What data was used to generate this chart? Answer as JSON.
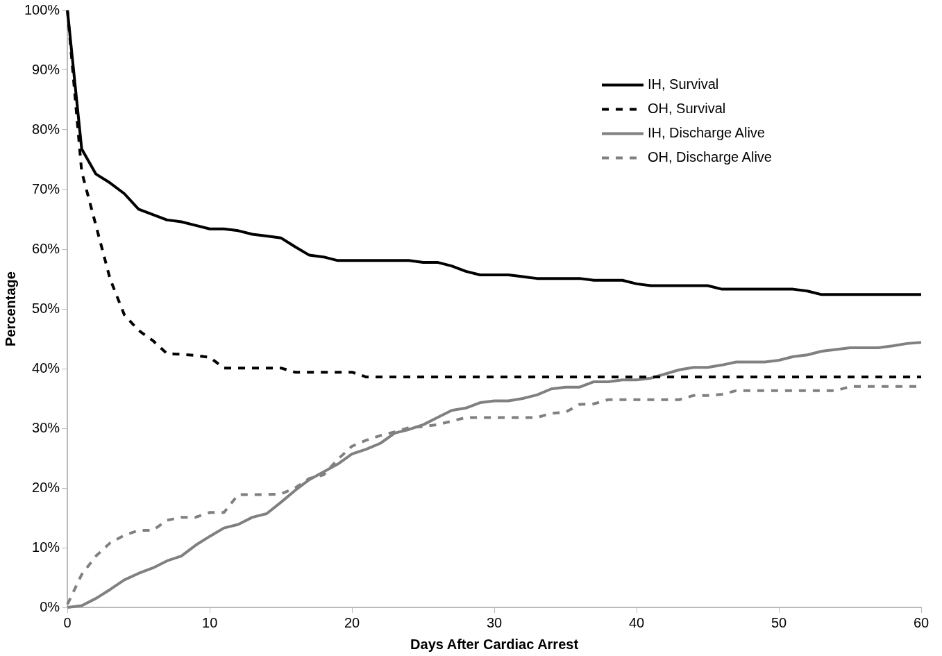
{
  "chart_data": {
    "type": "line",
    "xlabel": "Days After Cardiac Arrest",
    "ylabel": "Percentage",
    "x": [
      0,
      1,
      2,
      3,
      4,
      5,
      6,
      7,
      8,
      9,
      10,
      11,
      12,
      13,
      14,
      15,
      16,
      17,
      18,
      19,
      20,
      21,
      22,
      23,
      24,
      25,
      26,
      27,
      28,
      29,
      30,
      31,
      32,
      33,
      34,
      35,
      36,
      37,
      38,
      39,
      40,
      41,
      42,
      43,
      44,
      45,
      46,
      47,
      48,
      49,
      50,
      51,
      52,
      53,
      54,
      55,
      56,
      57,
      58,
      59,
      60
    ],
    "series": [
      {
        "name": "IH, Survival",
        "color": "#000000",
        "line_style": "solid",
        "values": [
          100,
          76.8,
          72.6,
          71.1,
          69.3,
          66.7,
          65.8,
          64.9,
          64.6,
          64.0,
          63.4,
          63.4,
          63.1,
          62.5,
          62.2,
          61.9,
          60.4,
          59.0,
          58.7,
          58.1,
          58.1,
          58.1,
          58.1,
          58.1,
          58.1,
          57.8,
          57.8,
          57.2,
          56.3,
          55.7,
          55.7,
          55.7,
          55.4,
          55.1,
          55.1,
          55.1,
          55.1,
          54.8,
          54.8,
          54.8,
          54.2,
          53.9,
          53.9,
          53.9,
          53.9,
          53.9,
          53.3,
          53.3,
          53.3,
          53.3,
          53.3,
          53.3,
          53.0,
          52.4,
          52.4,
          52.4,
          52.4,
          52.4,
          52.4,
          52.4,
          52.4
        ]
      },
      {
        "name": "OH, Survival",
        "color": "#000000",
        "line_style": "dashed",
        "values": [
          100,
          73,
          64,
          55,
          49,
          46.4,
          44.7,
          42.5,
          42.4,
          42.2,
          41.9,
          40.1,
          40.1,
          40.1,
          40.1,
          40.1,
          39.4,
          39.4,
          39.4,
          39.4,
          39.4,
          38.6,
          38.6,
          38.6,
          38.6,
          38.6,
          38.6,
          38.6,
          38.6,
          38.6,
          38.6,
          38.6,
          38.6,
          38.6,
          38.6,
          38.6,
          38.6,
          38.6,
          38.6,
          38.6,
          38.6,
          38.6,
          38.6,
          38.6,
          38.6,
          38.6,
          38.6,
          38.6,
          38.6,
          38.6,
          38.6,
          38.6,
          38.6,
          38.6,
          38.6,
          38.6,
          38.6,
          38.6,
          38.6,
          38.6,
          38.6
        ]
      },
      {
        "name": "IH, Discharge Alive",
        "color": "#808080",
        "line_style": "solid",
        "values": [
          0,
          0.3,
          1.5,
          3.0,
          4.6,
          5.7,
          6.6,
          7.8,
          8.6,
          10.4,
          11.9,
          13.3,
          13.9,
          15.1,
          15.7,
          17.6,
          19.6,
          21.4,
          22.7,
          24.0,
          25.7,
          26.5,
          27.5,
          29.2,
          29.8,
          30.6,
          31.8,
          33.0,
          33.4,
          34.3,
          34.6,
          34.6,
          35.0,
          35.6,
          36.6,
          36.9,
          36.9,
          37.8,
          37.8,
          38.1,
          38.1,
          38.4,
          39.1,
          39.8,
          40.2,
          40.2,
          40.6,
          41.1,
          41.1,
          41.1,
          41.4,
          42.0,
          42.3,
          42.9,
          43.2,
          43.5,
          43.5,
          43.5,
          43.8,
          44.2,
          44.4
        ]
      },
      {
        "name": "OH, Discharge Alive",
        "color": "#808080",
        "line_style": "dashed",
        "values": [
          0.5,
          5.5,
          8.6,
          10.8,
          12.1,
          12.9,
          12.9,
          14.6,
          15.1,
          15.1,
          15.9,
          15.9,
          18.9,
          18.9,
          18.9,
          19.0,
          20.0,
          21.6,
          22.2,
          24.8,
          27.0,
          28.0,
          28.8,
          29.4,
          30.1,
          30.3,
          30.6,
          31.2,
          31.8,
          31.8,
          31.8,
          31.8,
          31.8,
          31.8,
          32.5,
          32.7,
          34.0,
          34.1,
          34.8,
          34.8,
          34.8,
          34.8,
          34.8,
          34.8,
          35.5,
          35.5,
          35.7,
          36.3,
          36.3,
          36.3,
          36.3,
          36.3,
          36.3,
          36.3,
          36.3,
          37.0,
          37.0,
          37.0,
          37.0,
          37.0,
          37.0
        ]
      }
    ],
    "xlim": [
      0,
      60
    ],
    "xticks": [
      0,
      10,
      20,
      30,
      40,
      50,
      60
    ],
    "ylim": [
      0,
      100
    ],
    "yticks": [
      {
        "value": 0,
        "label": "0%"
      },
      {
        "value": 10,
        "label": "10%"
      },
      {
        "value": 20,
        "label": "20%"
      },
      {
        "value": 30,
        "label": "30%"
      },
      {
        "value": 40,
        "label": "40%"
      },
      {
        "value": 50,
        "label": "50%"
      },
      {
        "value": 60,
        "label": "60%"
      },
      {
        "value": 70,
        "label": "70%"
      },
      {
        "value": 80,
        "label": "80%"
      },
      {
        "value": 90,
        "label": "90%"
      },
      {
        "value": 100,
        "label": "100%"
      }
    ],
    "grid": false,
    "legend": "top right",
    "marker": "none"
  }
}
